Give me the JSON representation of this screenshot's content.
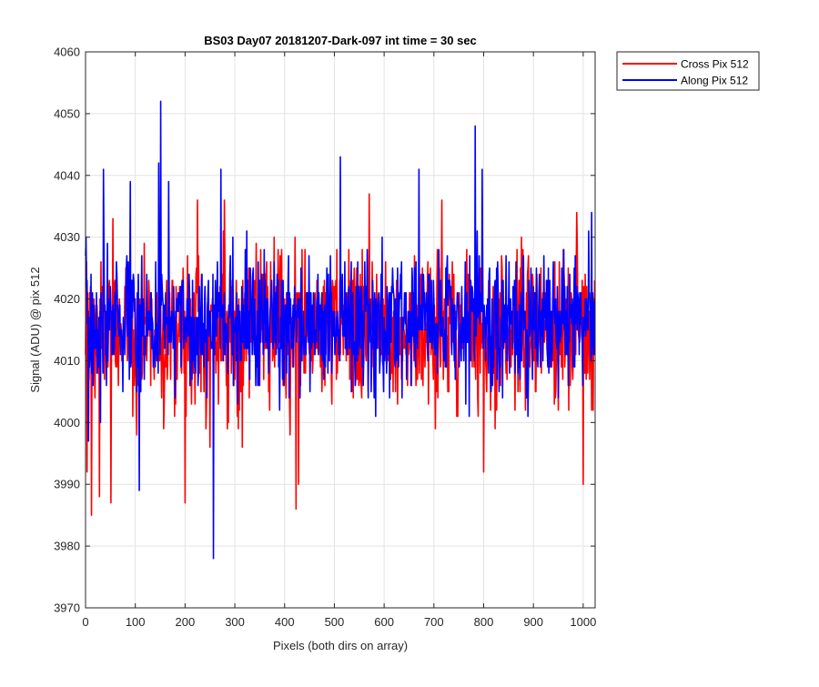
{
  "chart_data": {
    "type": "line",
    "title": "BS03 Day07 20181207-Dark-097 int time = 30 sec",
    "xlabel": "Pixels (both dirs on array)",
    "ylabel": "Signal (ADU) @ pix 512",
    "xlim": [
      0,
      1024
    ],
    "ylim": [
      3970,
      4060
    ],
    "xticks": [
      0,
      100,
      200,
      300,
      400,
      500,
      600,
      700,
      800,
      900,
      1000
    ],
    "yticks": [
      3970,
      3980,
      3990,
      4000,
      4010,
      4020,
      4030,
      4040,
      4050,
      4060
    ],
    "grid": true,
    "legend_position": "outside-top-right",
    "series": [
      {
        "name": "Cross Pix 512",
        "color": "#ff0000",
        "num_points": 1024,
        "mean": 4015,
        "sigma": 6,
        "notable_points": [
          {
            "x": 1,
            "y": 4021
          },
          {
            "x": 3,
            "y": 3992
          },
          {
            "x": 12,
            "y": 3985
          },
          {
            "x": 28,
            "y": 3988
          },
          {
            "x": 51,
            "y": 3987
          },
          {
            "x": 55,
            "y": 4033
          },
          {
            "x": 200,
            "y": 3987
          },
          {
            "x": 225,
            "y": 4036
          },
          {
            "x": 250,
            "y": 3996
          },
          {
            "x": 279,
            "y": 4036
          },
          {
            "x": 423,
            "y": 3986
          },
          {
            "x": 428,
            "y": 3990
          },
          {
            "x": 570,
            "y": 4037
          },
          {
            "x": 716,
            "y": 4036
          },
          {
            "x": 800,
            "y": 3992
          },
          {
            "x": 987,
            "y": 4034
          },
          {
            "x": 1000,
            "y": 3990
          },
          {
            "x": 1020,
            "y": 4002
          }
        ]
      },
      {
        "name": "Along Pix 512",
        "color": "#0000ff",
        "num_points": 1024,
        "mean": 4016,
        "sigma": 5.5,
        "notable_points": [
          {
            "x": 0,
            "y": 4027
          },
          {
            "x": 6,
            "y": 3997
          },
          {
            "x": 36,
            "y": 4041
          },
          {
            "x": 90,
            "y": 4039
          },
          {
            "x": 108,
            "y": 3989
          },
          {
            "x": 147,
            "y": 4042
          },
          {
            "x": 151,
            "y": 4052
          },
          {
            "x": 167,
            "y": 4039
          },
          {
            "x": 257,
            "y": 3978
          },
          {
            "x": 272,
            "y": 4041
          },
          {
            "x": 512,
            "y": 4043
          },
          {
            "x": 670,
            "y": 4041
          },
          {
            "x": 783,
            "y": 4048
          },
          {
            "x": 797,
            "y": 4041
          },
          {
            "x": 1017,
            "y": 4034
          }
        ]
      }
    ]
  }
}
